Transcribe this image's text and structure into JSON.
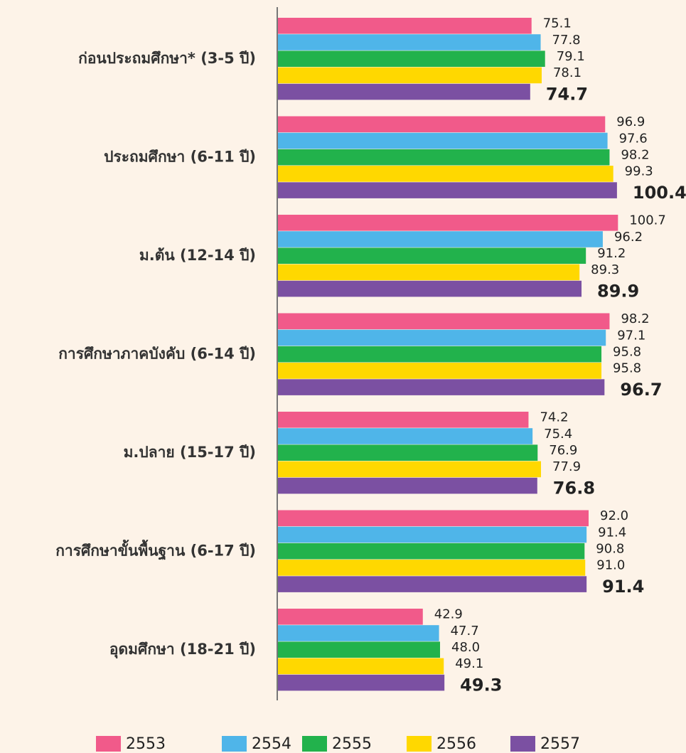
{
  "chart_data": {
    "type": "bar",
    "orientation": "horizontal",
    "categories": [
      "ก่อนประถมศึกษา* (3-5 ปี)",
      "ประถมศึกษา (6-11 ปี)",
      "ม.ต้น (12-14 ปี)",
      "การศึกษาภาคบังคับ (6-14 ปี)",
      "ม.ปลาย (15-17 ปี)",
      "การศึกษาขั้นพื้นฐาน (6-17 ปี)",
      "อุดมศึกษา (18-21 ปี)"
    ],
    "series": [
      {
        "name": "2553",
        "color": "#f15a8a",
        "values": [
          75.1,
          96.9,
          100.7,
          98.2,
          74.2,
          92.0,
          42.9
        ],
        "value_labels": [
          "75.1",
          "96.9",
          "100.7",
          "98.2",
          "74.2",
          "92.0",
          "42.9"
        ]
      },
      {
        "name": "2554",
        "color": "#4fb5e9",
        "values": [
          77.8,
          97.6,
          96.2,
          97.1,
          75.4,
          91.4,
          47.7
        ]
      },
      {
        "name": "2555",
        "color": "#22b24c",
        "values": [
          79.1,
          98.2,
          91.2,
          95.8,
          76.9,
          90.8,
          48.0
        ],
        "value_labels": [
          "79.1",
          "98.2",
          "91.2",
          "95.8",
          "76.9",
          "90.8",
          "48.0"
        ]
      },
      {
        "name": "2556",
        "color": "#ffd800",
        "values": [
          78.1,
          99.3,
          89.3,
          95.8,
          77.9,
          91.0,
          49.1
        ],
        "value_labels": [
          "78.1",
          "99.3",
          "89.3",
          "95.8",
          "77.9",
          "91.0",
          "49.1"
        ]
      },
      {
        "name": "2557",
        "color": "#7b50a2",
        "values": [
          74.7,
          100.4,
          89.9,
          96.7,
          76.8,
          91.4,
          49.3
        ]
      }
    ],
    "xlim": [
      0,
      120
    ],
    "legend": "bottom"
  }
}
